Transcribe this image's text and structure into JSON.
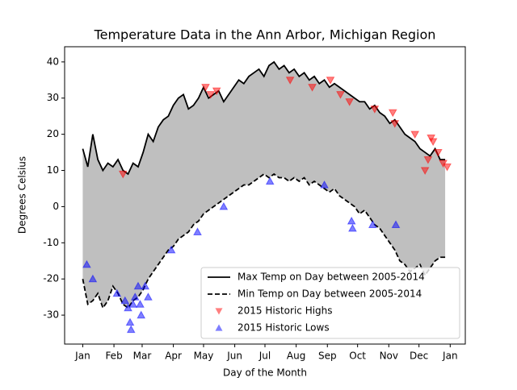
{
  "chart_data": {
    "type": "line",
    "title": "Temperature Data in the Ann Arbor, Michigan Region",
    "xlabel": "Day of the Month",
    "ylabel": "Degrees Celsius",
    "x": [
      0,
      5,
      10,
      15,
      20,
      25,
      30,
      35,
      40,
      45,
      50,
      55,
      60,
      65,
      70,
      75,
      80,
      85,
      90,
      95,
      100,
      105,
      110,
      115,
      120,
      125,
      130,
      135,
      140,
      145,
      150,
      155,
      160,
      165,
      170,
      175,
      180,
      185,
      190,
      195,
      200,
      205,
      210,
      215,
      220,
      225,
      230,
      235,
      240,
      245,
      250,
      255,
      260,
      265,
      270,
      275,
      280,
      285,
      290,
      295,
      300,
      305,
      310,
      315,
      320,
      325,
      330,
      335,
      340,
      345,
      350,
      355,
      360
    ],
    "series": [
      {
        "name": "Max Temp on Day between 2005-2014",
        "color": "#000000",
        "dash": "solid",
        "values": [
          16,
          11,
          20,
          13,
          10,
          12,
          11,
          13,
          10,
          9,
          12,
          11,
          15,
          20,
          18,
          22,
          24,
          25,
          28,
          30,
          31,
          27,
          28,
          30,
          33,
          30,
          31,
          32,
          29,
          31,
          33,
          35,
          34,
          36,
          37,
          38,
          36,
          39,
          40,
          38,
          39,
          37,
          38,
          36,
          37,
          35,
          36,
          34,
          35,
          33,
          34,
          33,
          32,
          31,
          30,
          29,
          29,
          27,
          28,
          26,
          25,
          23,
          24,
          22,
          20,
          19,
          18,
          16,
          15,
          14,
          16,
          13,
          13
        ]
      },
      {
        "name": "Min Temp on Day between 2005-2014",
        "color": "#000000",
        "dash": "dashed",
        "values": [
          -20,
          -27,
          -26,
          -24,
          -28,
          -26,
          -22,
          -24,
          -27,
          -28,
          -26,
          -25,
          -23,
          -20,
          -18,
          -16,
          -14,
          -12,
          -11,
          -9,
          -8,
          -7,
          -5,
          -4,
          -2,
          -1,
          0,
          1,
          2,
          3,
          4,
          5,
          6,
          6,
          7,
          8,
          9,
          8,
          9,
          8,
          8,
          7,
          8,
          7,
          8,
          6,
          7,
          6,
          5,
          4,
          5,
          3,
          2,
          1,
          0,
          -2,
          -1,
          -3,
          -5,
          -6,
          -8,
          -10,
          -12,
          -15,
          -16,
          -18,
          -17,
          -16,
          -19,
          -17,
          -15,
          -14,
          -14
        ]
      }
    ],
    "fill_color": "#bfbfbf",
    "scatter": [
      {
        "name": "2015 Historic Highs",
        "color": "#ff0000",
        "marker": "down",
        "x": [
          40,
          122,
          127,
          133,
          206,
          228,
          246,
          256,
          265,
          290,
          308,
          310,
          330,
          340,
          343,
          346,
          348,
          353,
          358,
          362
        ],
        "values": [
          9,
          33,
          31,
          32,
          35,
          33,
          35,
          31,
          29,
          27,
          26,
          23,
          20,
          10,
          13,
          19,
          18,
          15,
          12,
          11
        ]
      },
      {
        "name": "2015 Historic Lows",
        "color": "#0000ff",
        "marker": "up",
        "x": [
          4,
          10,
          34,
          42,
          45,
          47,
          48,
          50,
          52,
          55,
          57,
          58,
          62,
          65,
          88,
          114,
          140,
          186,
          240,
          267,
          268,
          288,
          311
        ],
        "values": [
          -16,
          -20,
          -24,
          -26,
          -28,
          -32,
          -34,
          -27,
          -25,
          -22,
          -27,
          -30,
          -22,
          -25,
          -12,
          -7,
          0,
          7,
          6,
          -4,
          -6,
          -5,
          -5
        ]
      }
    ],
    "xlim": [
      -18,
      380
    ],
    "ylim": [
      -38,
      44.2
    ],
    "xticks": [
      {
        "value": 0,
        "label": "Jan"
      },
      {
        "value": 31,
        "label": "Feb"
      },
      {
        "value": 59,
        "label": "Mar"
      },
      {
        "value": 90,
        "label": "Apr"
      },
      {
        "value": 120,
        "label": "May"
      },
      {
        "value": 151,
        "label": "Jun"
      },
      {
        "value": 181,
        "label": "Jul"
      },
      {
        "value": 212,
        "label": "Aug"
      },
      {
        "value": 243,
        "label": "Sep"
      },
      {
        "value": 273,
        "label": "Oct"
      },
      {
        "value": 304,
        "label": "Nov"
      },
      {
        "value": 334,
        "label": "Dec"
      },
      {
        "value": 365,
        "label": "Jan"
      }
    ],
    "yticks": [
      -30,
      -20,
      -10,
      0,
      10,
      20,
      30,
      40
    ],
    "legend": "lower right"
  }
}
